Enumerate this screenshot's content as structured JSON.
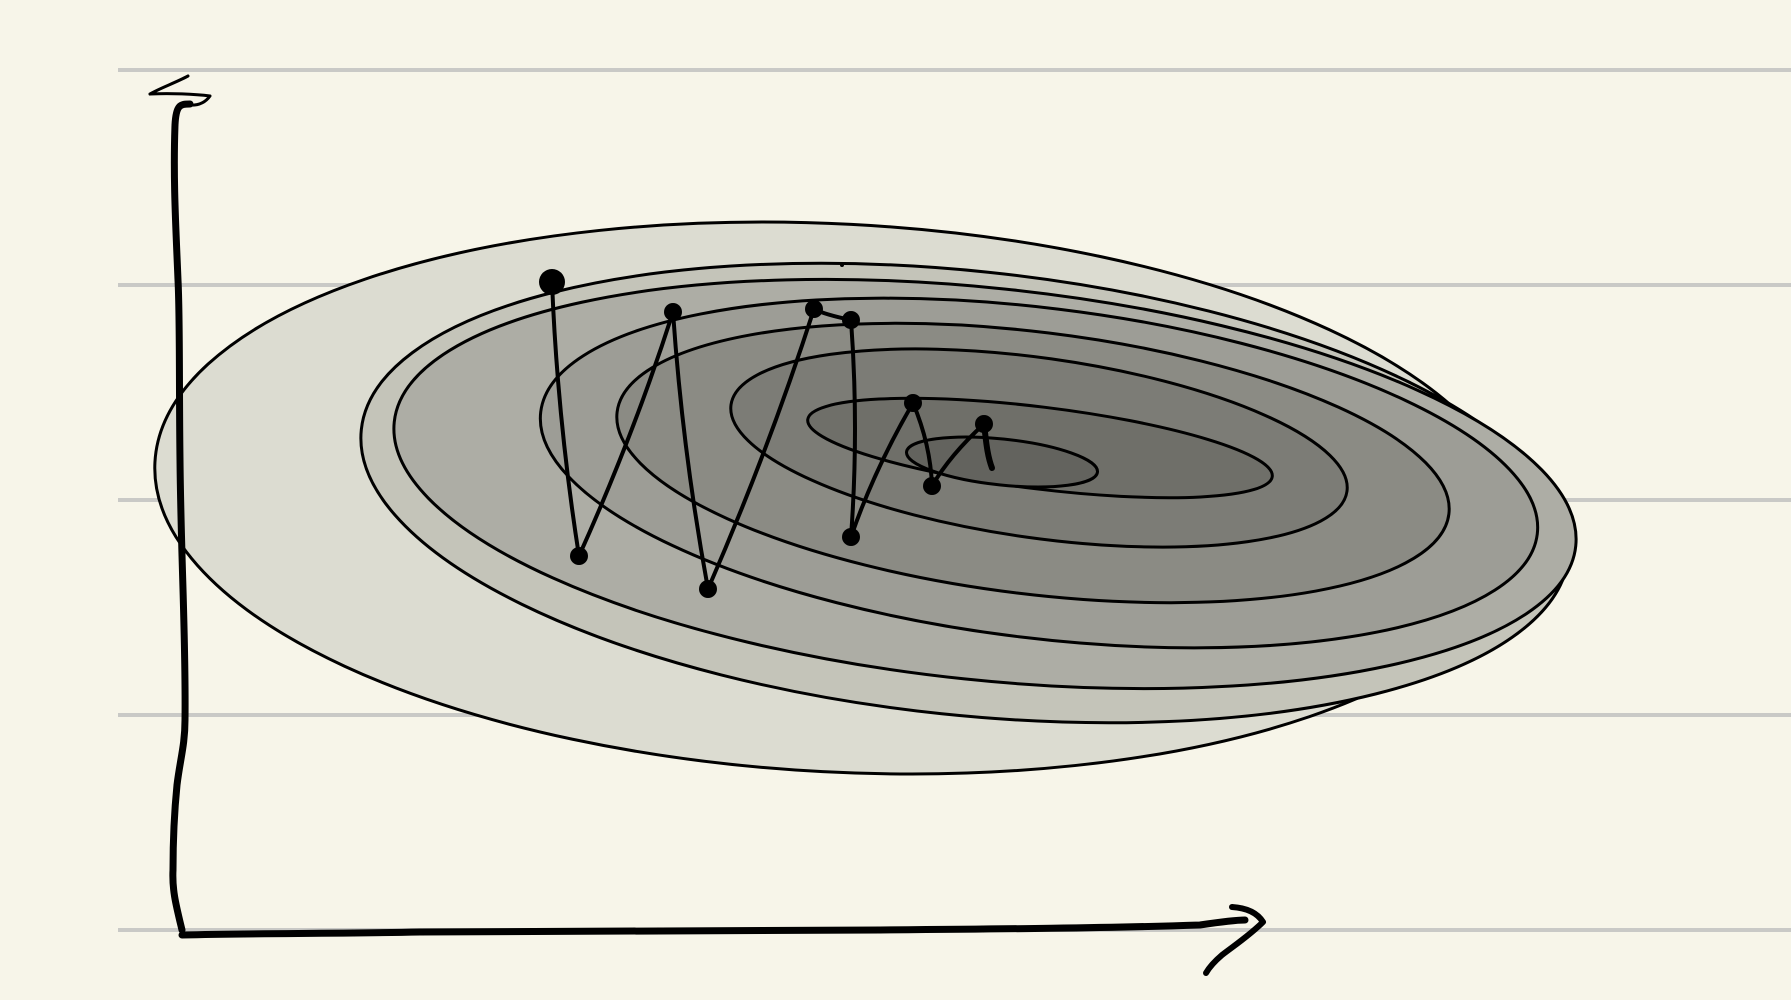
{
  "page": {
    "background": "#f7f5e9",
    "ruled_line_color": "#c9c9c6",
    "ink_color": "#000000"
  },
  "diagram": {
    "kind": "hand-drawn contour plot with zig-zag descent path",
    "axes": {
      "y_arrow": true,
      "x_arrow": true,
      "labels_present": false
    },
    "contour_levels": 8,
    "contour_fills": [
      "#dcdcd1",
      "#c4c4b9",
      "#adada5",
      "#9d9d96",
      "#8b8b84",
      "#7c7c76",
      "#6f6f69",
      "#63635e"
    ],
    "path_points": 10,
    "text_labels": []
  }
}
